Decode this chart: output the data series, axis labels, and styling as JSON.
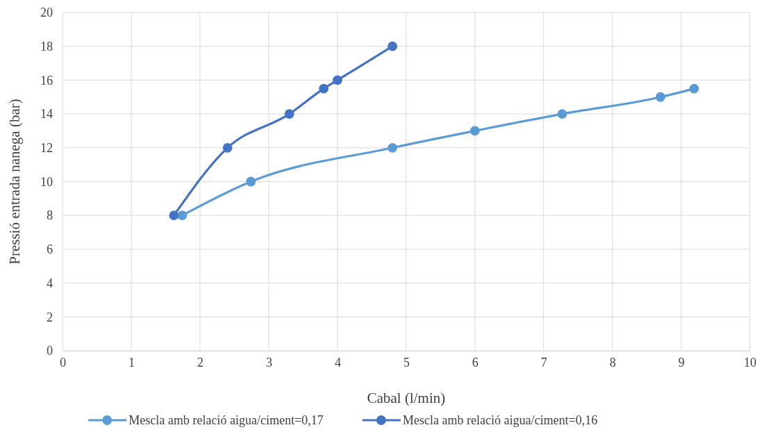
{
  "chart_data": {
    "type": "line",
    "xlabel": "Cabal (l/min)",
    "ylabel": "Pressió entrada nanega (bar)",
    "xlim": [
      0,
      10
    ],
    "xticks": [
      0,
      1,
      2,
      3,
      4,
      5,
      6,
      7,
      8,
      9,
      10
    ],
    "ylim": [
      0,
      20
    ],
    "yticks": [
      0,
      2,
      4,
      6,
      8,
      10,
      12,
      14,
      16,
      18,
      20
    ],
    "grid": true,
    "legend": "bottom",
    "marker": "circle",
    "line_style": "solid",
    "series": [
      {
        "name": "Mescla amb relació aigua/ciment=0,17",
        "color": "#5b9bd5",
        "x": [
          1.74,
          2.74,
          4.8,
          6,
          7.27,
          8.7,
          9.19
        ],
        "values": [
          8,
          10,
          12,
          13,
          14,
          15,
          15.5
        ]
      },
      {
        "name": "Mescla amb relació aigua/ciment=0,16",
        "color": "#4472c4",
        "x": [
          1.62,
          2.4,
          3.3,
          3.8,
          4,
          4.8
        ],
        "values": [
          8,
          12,
          14,
          15.5,
          16,
          18
        ]
      }
    ]
  }
}
